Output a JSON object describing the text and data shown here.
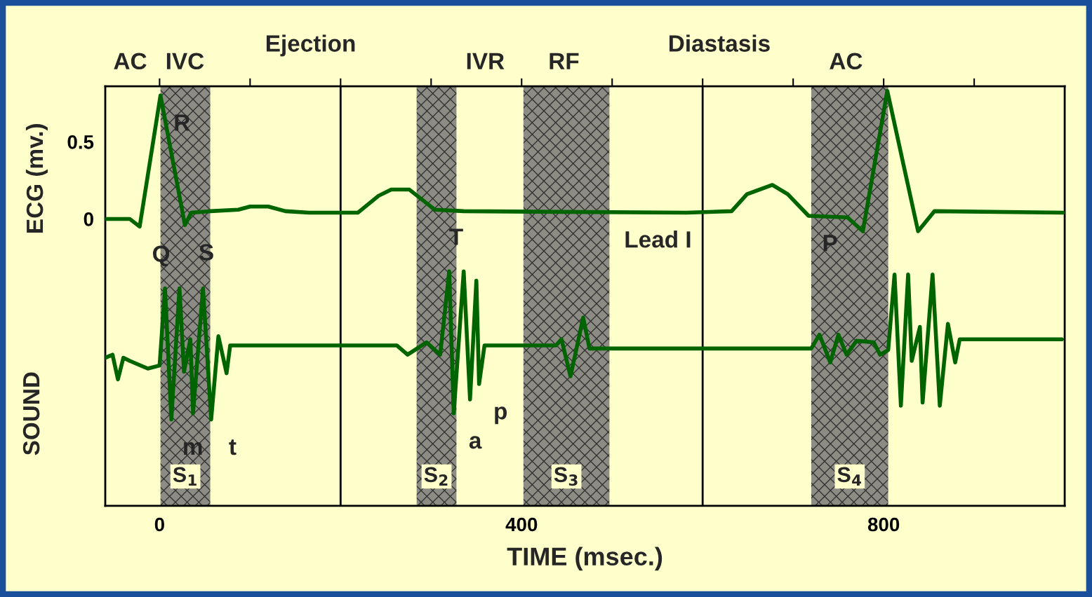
{
  "chart_data": {
    "type": "line",
    "xlabel": "TIME (msec.)",
    "ylabel": "ECG (mv.)",
    "xlim": [
      -60,
      1000
    ],
    "xticks": [
      0,
      {
        "value": 100,
        "label": null
      },
      {
        "value": 200,
        "label": null
      },
      {
        "value": 300,
        "label": null
      },
      400,
      {
        "value": 500,
        "label": null
      },
      {
        "value": 600,
        "label": null
      },
      {
        "value": 700,
        "label": null
      },
      800,
      {
        "value": 900,
        "label": null
      }
    ],
    "ylim": [
      -1.86,
      0.86
    ],
    "yticks": [
      0,
      0.5
    ],
    "grid": false,
    "legend": false,
    "series": [
      {
        "color": "#006400",
        "x": [
          -60,
          -33,
          -22,
          1,
          28,
          35,
          56,
          87,
          100,
          120,
          139,
          165,
          219,
          242,
          256,
          276,
          304,
          336,
          582,
          632,
          649,
          677,
          694,
          717,
          760,
          777,
          804,
          838,
          856,
          998
        ],
        "values": [
          0,
          0,
          -0.05,
          0.8,
          -0.04,
          0.04,
          0.05,
          0.06,
          0.08,
          0.08,
          0.05,
          0.04,
          0.04,
          0.15,
          0.19,
          0.19,
          0.06,
          0.05,
          0.04,
          0.05,
          0.16,
          0.22,
          0.16,
          0.02,
          0.01,
          -0.08,
          0.83,
          -0.08,
          0.05,
          0.04
        ]
      },
      {
        "color": "#006400",
        "x": [
          -60,
          -52,
          -46,
          -40,
          -33,
          -13,
          0,
          6,
          13,
          22,
          27,
          34,
          37,
          48,
          57,
          65,
          74,
          78,
          262,
          274,
          295,
          310,
          320,
          325,
          336,
          343,
          350,
          353,
          359,
          438,
          444,
          454,
          468,
          475,
          720,
          729,
          741,
          750,
          759,
          770,
          789,
          796,
          805,
          812,
          819,
          827,
          831,
          840,
          843,
          854,
          862,
          871,
          879,
          884,
          997
        ],
        "values": [
          -0.9,
          -0.88,
          -1.04,
          -0.9,
          -0.92,
          -0.97,
          -0.95,
          -0.45,
          -1.3,
          -0.45,
          -0.99,
          -0.78,
          -1.26,
          -0.45,
          -1.3,
          -0.76,
          -1.0,
          -0.82,
          -0.82,
          -0.88,
          -0.8,
          -0.88,
          -0.34,
          -1.26,
          -0.34,
          -1.17,
          -0.4,
          -1.07,
          -0.82,
          -0.82,
          -0.78,
          -1.02,
          -0.64,
          -0.84,
          -0.84,
          -0.75,
          -0.93,
          -0.75,
          -0.88,
          -0.79,
          -0.8,
          -0.88,
          -0.85,
          -0.36,
          -1.21,
          -0.36,
          -0.92,
          -0.7,
          -1.19,
          -0.36,
          -1.21,
          -0.68,
          -0.93,
          -0.78,
          -0.78
        ]
      }
    ],
    "bands": [
      {
        "axis": "x",
        "from": 1,
        "to": 56,
        "label": "S$_{1}$",
        "color": "#8c8c84"
      },
      {
        "axis": "x",
        "from": 284,
        "to": 328,
        "label": "S$_{2}$",
        "color": "#8c8c84"
      },
      {
        "axis": "x",
        "from": 402,
        "to": 497,
        "label": "S$_{3}$",
        "color": "#8c8c84"
      },
      {
        "axis": "x",
        "from": 720,
        "to": 805,
        "label": "S$_{4}$",
        "color": "#8c8c84"
      }
    ],
    "ref_lines": [
      {
        "axis": "x",
        "value": 200,
        "color": "#000000"
      },
      {
        "axis": "x",
        "value": 600,
        "color": "#000000"
      }
    ],
    "annotations": [
      "AC",
      "IVC",
      "Ejection",
      "IVR",
      "RF",
      "Diastasis",
      "AC",
      {
        "text": "Q",
        "x": -22,
        "y": -0.05
      },
      {
        "text": "R",
        "x": 1,
        "y": 0.8
      },
      {
        "text": "S",
        "x": 28,
        "y": -0.04
      },
      {
        "text": "T",
        "x": 304,
        "y": 0.06
      },
      {
        "text": "P",
        "x": 717,
        "y": 0.02
      },
      "Lead I",
      {
        "text": "m",
        "x": 13,
        "y": -1.3
      },
      {
        "text": "t",
        "x": 57,
        "y": -1.3
      },
      {
        "text": "a",
        "x": 325,
        "y": -1.26
      },
      {
        "text": "p",
        "x": 353,
        "y": -1.07
      },
      "SOUND"
    ]
  }
}
